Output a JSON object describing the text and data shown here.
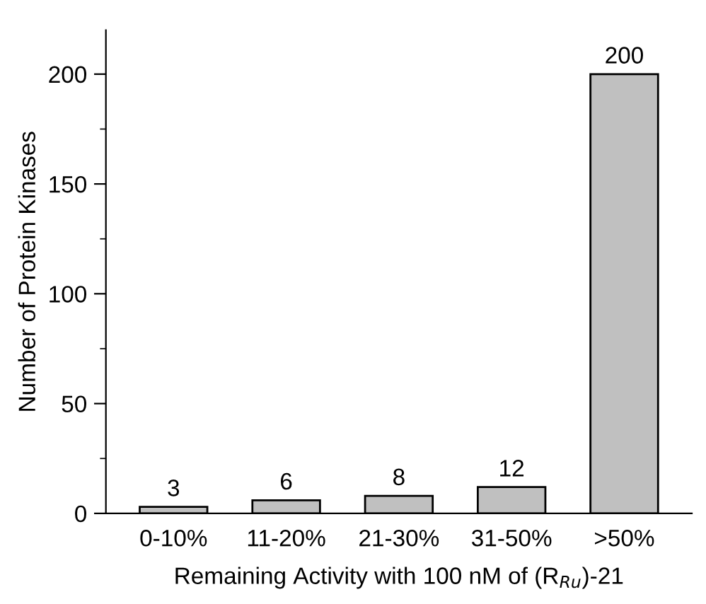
{
  "chart_data": {
    "type": "bar",
    "xlabel": "Remaining Activity with 100 nM of (R$_{Ru}$)-21",
    "ylabel": "Number of Protein Kinases",
    "categories": [
      "0-10%",
      "11-20%",
      "21-30%",
      "31-50%",
      ">50%"
    ],
    "values": [
      3,
      6,
      8,
      12,
      200
    ],
    "color": "#c0c0c0",
    "data_labels": true,
    "ylim": [
      0,
      220
    ],
    "yticks": [
      0,
      {
        "value": 25,
        "label": null
      },
      50,
      {
        "value": 75,
        "label": null
      },
      100,
      {
        "value": 125,
        "label": null
      },
      150,
      {
        "value": 175,
        "label": null
      },
      200
    ],
    "grid": false,
    "legend": false
  }
}
